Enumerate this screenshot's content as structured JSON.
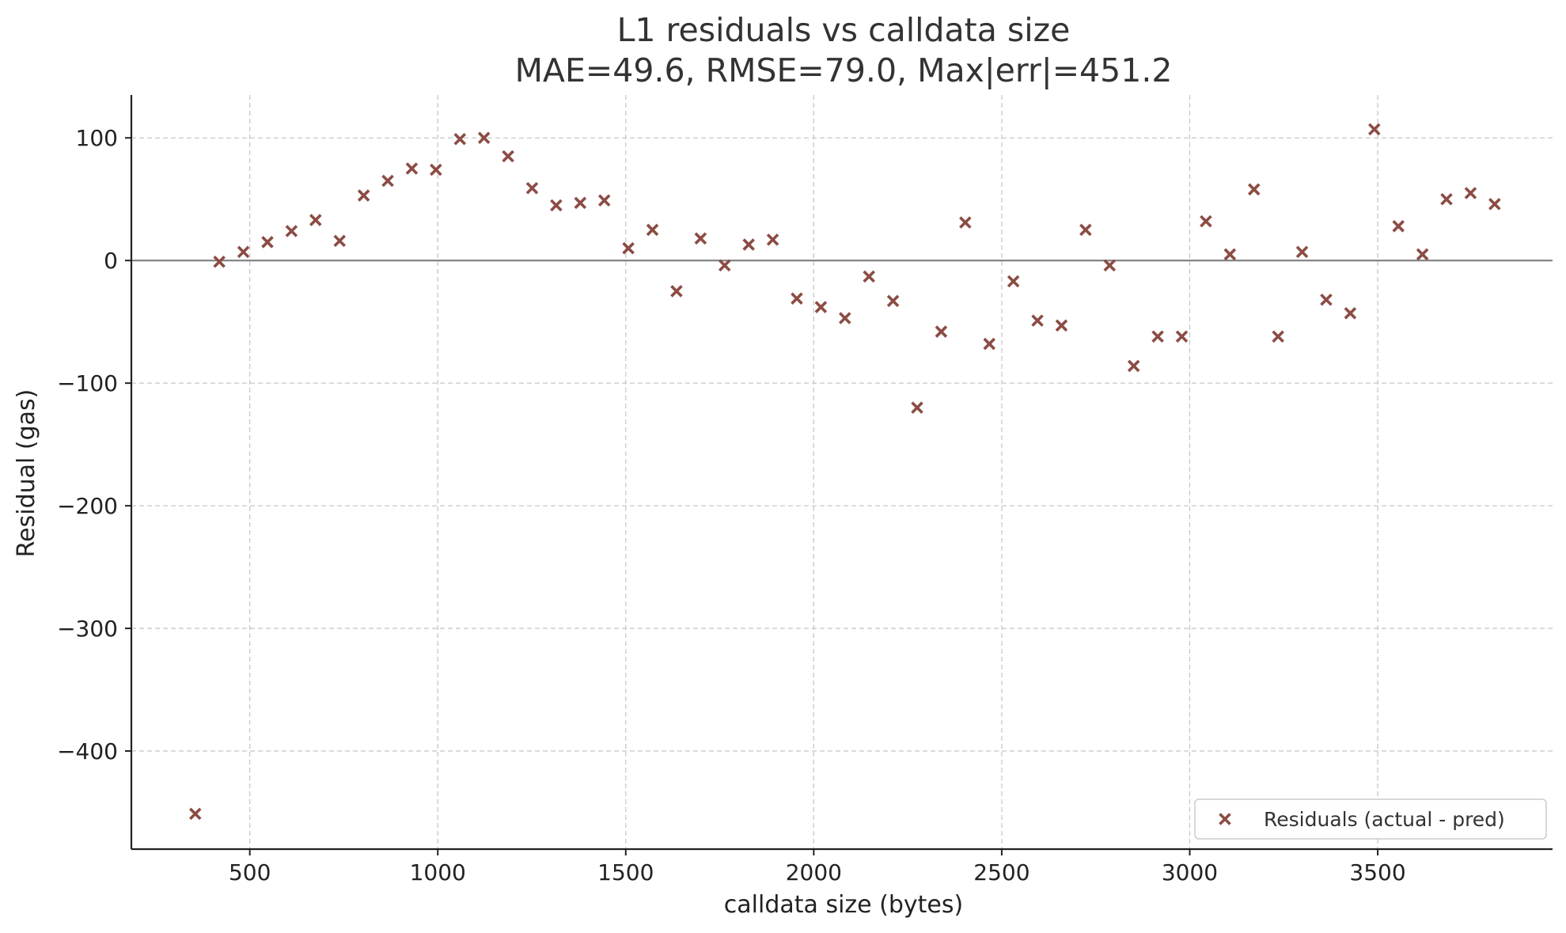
{
  "chart_data": {
    "type": "scatter",
    "title": "L1 residuals vs calldata size",
    "subtitle": "MAE=49.6, RMSE=79.0, Max|err|=451.2",
    "xlabel": "calldata size (bytes)",
    "ylabel": "Residual (gas)",
    "xlim": [
      185,
      3965
    ],
    "ylim": [
      -480,
      135
    ],
    "xticks": [
      500,
      1000,
      1500,
      2000,
      2500,
      3000,
      3500
    ],
    "xtick_labels": [
      "500",
      "1000",
      "1500",
      "2000",
      "2500",
      "3000",
      "3500"
    ],
    "yticks": [
      100,
      0,
      -100,
      -200,
      -300,
      -400
    ],
    "ytick_labels": [
      "100",
      "0",
      "−100",
      "−200",
      "−300",
      "−400"
    ],
    "grid": true,
    "reference_line_y": 0,
    "legend_position": "lower right",
    "series": [
      {
        "name": "Residuals (actual - pred)",
        "color": "#8b4c44",
        "marker": "x",
        "x": [
          355,
          419,
          483,
          547,
          611,
          675,
          739,
          803,
          867,
          931,
          995,
          1059,
          1123,
          1187,
          1251,
          1315,
          1379,
          1443,
          1507,
          1571,
          1635,
          1699,
          1763,
          1827,
          1891,
          1955,
          2019,
          2083,
          2147,
          2211,
          2275,
          2339,
          2403,
          2467,
          2531,
          2595,
          2659,
          2723,
          2787,
          2851,
          2915,
          2979,
          3043,
          3107,
          3171,
          3235,
          3299,
          3363,
          3427,
          3491,
          3555,
          3619,
          3683,
          3747,
          3811
        ],
        "y": [
          -451.2,
          -1,
          7,
          15,
          24,
          33,
          16,
          53,
          65,
          75,
          74,
          99,
          100,
          85,
          59,
          45,
          47,
          49,
          10,
          25,
          -25,
          18,
          -4,
          13,
          17,
          -31,
          -38,
          -47,
          -13,
          -33,
          -120,
          -58,
          31,
          -68,
          -17,
          -49,
          -53,
          25,
          -4,
          -86,
          -62,
          -62,
          32,
          5,
          58,
          -62,
          7,
          -32,
          -43,
          107,
          28,
          5,
          50,
          55,
          46
        ]
      }
    ]
  }
}
